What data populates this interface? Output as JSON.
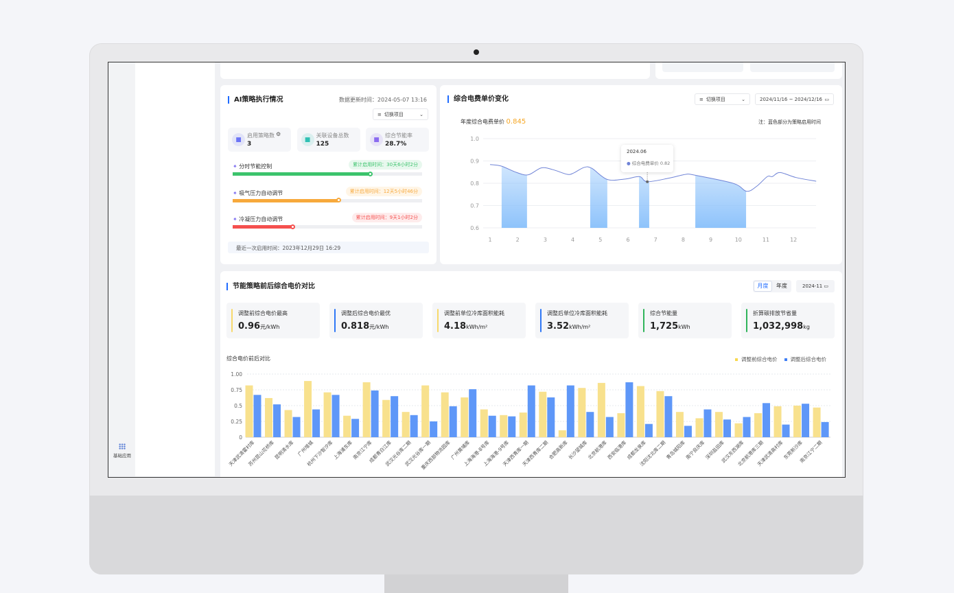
{
  "sidebar": {
    "apps_label": "基础应用",
    "apps_icon": "grid-icon"
  },
  "ai_panel": {
    "title": "AI策略执行情况",
    "update_time": "数据更新时间：2024-05-07 13:16",
    "project_select": "切换项目",
    "stats": [
      {
        "label": "启用策略数",
        "value": "3",
        "icon": "list-icon",
        "color": "#6b74f6"
      },
      {
        "label": "关联设备总数",
        "value": "125",
        "icon": "device-icon",
        "color": "#2fc0b4"
      },
      {
        "label": "综合节能率",
        "value": "28.7%",
        "icon": "leaf-icon",
        "color": "#8b6bf0"
      }
    ],
    "strategies": [
      {
        "name": "分时节能控制",
        "runtime": "累计启用时间：30天6小时2分",
        "progress": 0.73,
        "color": "#3cc36c",
        "pill_bg": "#e8f8ee"
      },
      {
        "name": "吸气压力自动调节",
        "runtime": "累计启用时间：12天5小时46分",
        "progress": 0.56,
        "color": "#f7a93c",
        "pill_bg": "#fff5e6"
      },
      {
        "name": "冷凝压力自动调节",
        "runtime": "累计启用时间：9天1小时2分",
        "progress": 0.32,
        "color": "#f5504e",
        "pill_bg": "#feecec"
      }
    ],
    "last_enabled": "最近一次启用时间：2023年12月29日  16:29"
  },
  "price_panel": {
    "title": "综合电费单价变化",
    "project_select": "切换项目",
    "date_range": "2024/11/16 ~ 2024/12/16",
    "annual_label": "年度综合电费单价",
    "annual_value": "0.845",
    "note": "注：蓝色部分为策略启用时间",
    "tooltip": {
      "title": "2024.06",
      "series": "综合电费单价",
      "value": "0.82"
    }
  },
  "compare_panel": {
    "title": "节能策略前后综合电价对比",
    "tabs": [
      "月度",
      "年度"
    ],
    "active_tab": "月度",
    "month": "2024-11",
    "kpis": [
      {
        "label": "调整前综合电价最高",
        "value": "0.96",
        "unit": "元/kWh",
        "color": "#f7d96b"
      },
      {
        "label": "调整后综合电价最优",
        "value": "0.818",
        "unit": "元/kWh",
        "color": "#2f78f6"
      },
      {
        "label": "调整前单位冷库面积能耗",
        "value": "4.18",
        "unit": "kWh/m²",
        "color": "#f7d96b"
      },
      {
        "label": "调整后单位冷库面积能耗",
        "value": "3.52",
        "unit": "kWh/m²",
        "color": "#2f78f6"
      },
      {
        "label": "综合节能量",
        "value": "1,725",
        "unit": "kWh",
        "color": "#2fb45a"
      },
      {
        "label": "折算碳排放节省量",
        "value": "1,032,998",
        "unit": "kg",
        "color": "#2fb45a"
      }
    ]
  },
  "chart_data": [
    {
      "type": "line",
      "title": "",
      "x": [
        1,
        1.41,
        1.97,
        2.39,
        2.86,
        3.28,
        3.8,
        4.03,
        4.41,
        4.69,
        5.25,
        5.9,
        6.42,
        6.7,
        7.49,
        8.1,
        8.43,
        9.83,
        10.3,
        10.67,
        11.05,
        11.23,
        11.51,
        12.08,
        12.82
      ],
      "y": [
        0.884,
        0.877,
        0.848,
        0.838,
        0.869,
        0.861,
        0.84,
        0.846,
        0.871,
        0.867,
        0.817,
        0.819,
        0.83,
        0.807,
        0.823,
        0.84,
        0.836,
        0.799,
        0.764,
        0.787,
        0.83,
        0.83,
        0.848,
        0.826,
        0.809
      ],
      "xticks": [
        "1",
        "2",
        "3",
        "4",
        "5",
        "6",
        "7",
        "8",
        "9",
        "10",
        "11",
        "12"
      ],
      "yticks": [
        "0.6",
        "0.7",
        "0.8",
        "0.9",
        "1.0"
      ],
      "ylim": [
        0.6,
        1.0
      ],
      "strategy_ranges": [
        [
          1.42,
          2.34
        ],
        [
          4.63,
          5.25
        ],
        [
          6.4,
          6.77
        ],
        [
          8.44,
          10.28
        ]
      ],
      "line_color": "#6f83d6",
      "highlight_color": "#8ec3fb",
      "grid": true
    },
    {
      "type": "bar",
      "title": "综合电价前后对比",
      "ylim": [
        0,
        1
      ],
      "yticks": [
        "0",
        "0.25",
        "0.5",
        "0.75",
        "1.00"
      ],
      "grid": true,
      "legend": "top-right",
      "categories": [
        "天津武清霍村库",
        "苏州昆山花桥库",
        "昆明清水库",
        "广州增城",
        "杭州下沙智汐库",
        "上海浦东库",
        "南京江宁库",
        "成都青白江库",
        "武汉光谷库二期",
        "武汉光谷库一期",
        "重庆西部物流园库",
        "广州黄埔库",
        "上海海港-8号库",
        "上海海港-9号库",
        "天津西青库一期",
        "天津西青库二期",
        "合肥高新库",
        "长沙望城库",
        "北京航港库",
        "西安临港库",
        "成都龙泉库",
        "沈阳沈北库二期",
        "青岛城阳库",
        "南宁良庆库",
        "深圳盐田库",
        "武汉东西湖库",
        "北京航港库三期",
        "天津武清高村库",
        "东莞新沙库",
        "南京江宁二期"
      ],
      "series": [
        {
          "name": "调整前综合电价",
          "color": "#f8e18d",
          "values": [
            0.82,
            0.62,
            0.43,
            0.89,
            0.71,
            0.34,
            0.87,
            0.59,
            0.4,
            0.82,
            0.71,
            0.63,
            0.44,
            0.35,
            0.39,
            0.72,
            0.11,
            0.78,
            0.86,
            0.38,
            0.81,
            0.73,
            0.4,
            0.3,
            0.4,
            0.22,
            0.38,
            0.49,
            0.5,
            0.47
          ]
        },
        {
          "name": "调整后综合电价",
          "color": "#5e97f8",
          "values": [
            0.67,
            0.52,
            0.32,
            0.44,
            0.67,
            0.29,
            0.74,
            0.65,
            0.35,
            0.25,
            0.49,
            0.76,
            0.34,
            0.33,
            0.82,
            0.63,
            0.82,
            0.4,
            0.32,
            0.87,
            0.21,
            0.65,
            0.18,
            0.44,
            0.28,
            0.32,
            0.54,
            0.2,
            0.53,
            0.24
          ]
        }
      ]
    }
  ]
}
